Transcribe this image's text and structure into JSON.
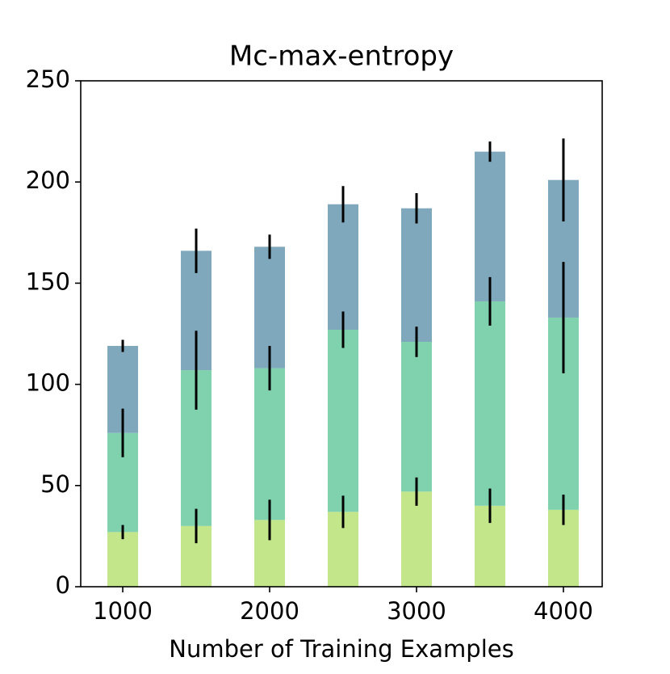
{
  "chart_data": {
    "type": "bar",
    "title": "Mc-max-entropy",
    "x_label": "Number of Training Examples",
    "x": [
      1000,
      1500,
      2000,
      2500,
      3000,
      3500,
      4000
    ],
    "series": [
      {
        "color": "#c3e68a",
        "values": [
          27,
          30,
          33,
          37,
          47,
          40,
          38
        ],
        "errors": [
          3.5,
          8.5,
          10,
          8,
          7,
          8.5,
          7.5
        ]
      },
      {
        "color": "#80d2ae",
        "values": [
          49,
          77,
          75,
          90,
          74,
          101,
          95
        ],
        "errors": [
          12,
          19.5,
          11,
          9,
          7.5,
          12,
          27.5
        ]
      },
      {
        "color": "#80a8bc",
        "values": [
          43,
          59,
          60,
          62,
          66,
          74,
          68
        ],
        "errors": [
          3,
          11,
          6,
          9,
          7.5,
          5,
          20.5
        ]
      }
    ],
    "xlim": [
      714,
      4264
    ],
    "xticks": [
      1000,
      2000,
      3000,
      4000
    ],
    "ylim": [
      0,
      250
    ],
    "yticks": [
      0,
      50,
      100,
      150,
      200,
      250
    ],
    "stacked": true
  }
}
